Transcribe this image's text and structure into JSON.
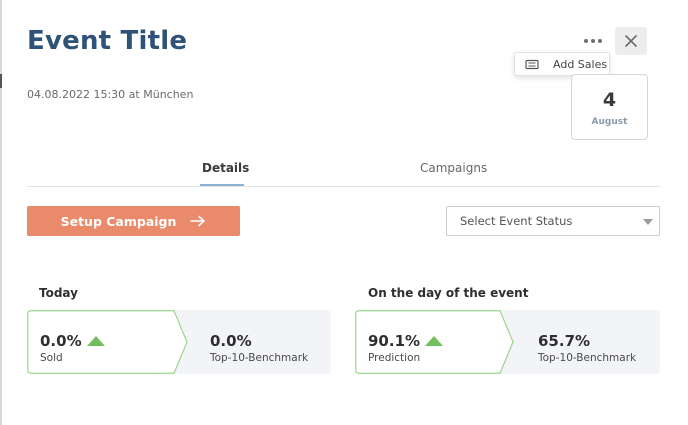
{
  "event": {
    "title": "Event Title",
    "datetime_location": "04.08.2022 15:30 at München",
    "date_day": "4",
    "date_month": "August"
  },
  "actions": {
    "more_icon": "more-horizontal-icon",
    "close_icon": "close-icon",
    "menu_item_label": "Add Sales",
    "menu_item_icon": "ticket-icon"
  },
  "tabs": [
    {
      "label": "Details",
      "active": true
    },
    {
      "label": "Campaigns",
      "active": false
    }
  ],
  "setup_button": {
    "label": "Setup Campaign",
    "icon": "arrow-right-icon"
  },
  "status_select": {
    "placeholder": "Select Event Status"
  },
  "stats": {
    "today": {
      "title": "Today",
      "primary_value": "0.0%",
      "primary_label": "Sold",
      "benchmark_value": "0.0%",
      "benchmark_label": "Top-10-Benchmark"
    },
    "event_day": {
      "title": "On the day of the event",
      "primary_value": "90.1%",
      "primary_label": "Prediction",
      "benchmark_value": "65.7%",
      "benchmark_label": "Top-10-Benchmark"
    }
  },
  "colors": {
    "title": "#2e5278",
    "accent_button": "#e98a6a",
    "trend_up": "#73bf5c",
    "panel_bg": "#f2f4f7",
    "card_border": "#9cd68c"
  }
}
